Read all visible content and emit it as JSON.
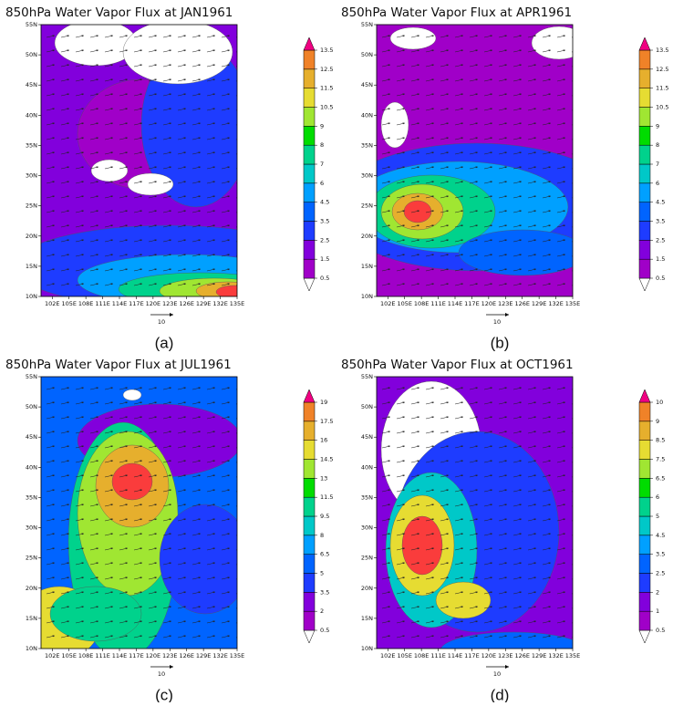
{
  "panels": [
    {
      "title": "850hPa Water Vapor Flux at JAN1961",
      "label": "(a)",
      "levels": [
        0.5,
        1.5,
        2.5,
        3.5,
        4.5,
        6,
        7,
        8,
        9,
        10.5,
        11.5,
        12.5,
        13.5
      ]
    },
    {
      "title": "850hPa Water Vapor Flux at APR1961",
      "label": "(b)",
      "levels": [
        0.5,
        1.5,
        2.5,
        3.5,
        4.5,
        6,
        7,
        8,
        9,
        10.5,
        11.5,
        12.5,
        13.5
      ]
    },
    {
      "title": "850hPa Water Vapor Flux at JUL1961",
      "label": "(c)",
      "levels": [
        0.5,
        2,
        3.5,
        5,
        6.5,
        8,
        9.5,
        11.5,
        13,
        14.5,
        16,
        17.5,
        19
      ]
    },
    {
      "title": "850hPa Water Vapor Flux at OCT1961",
      "label": "(d)",
      "levels": [
        0.5,
        1,
        2,
        2.5,
        3.5,
        4.5,
        5,
        6,
        6.5,
        7.5,
        8.5,
        9,
        10
      ]
    }
  ],
  "colorbar_colors": [
    "#a000c8",
    "#8200dc",
    "#1e3cff",
    "#0064ff",
    "#00a0ff",
    "#00c8c8",
    "#00d28c",
    "#00dc00",
    "#a0e632",
    "#e6dc32",
    "#e6af2d",
    "#f08228",
    "#fa3c3c",
    "#f00082"
  ],
  "xlim": [
    100,
    135
  ],
  "ylim": [
    10,
    55
  ],
  "lon_ticks": [
    {
      "value": 102,
      "label": "102E"
    },
    {
      "value": 105,
      "label": "105E"
    },
    {
      "value": 108,
      "label": "108E"
    },
    {
      "value": 111,
      "label": "111E"
    },
    {
      "value": 114,
      "label": "114E"
    },
    {
      "value": 117,
      "label": "117E"
    },
    {
      "value": 120,
      "label": "120E"
    },
    {
      "value": 123,
      "label": "123E"
    },
    {
      "value": 126,
      "label": "126E"
    },
    {
      "value": 129,
      "label": "129E"
    },
    {
      "value": 132,
      "label": "132E"
    },
    {
      "value": 135,
      "label": "135E"
    }
  ],
  "lat_ticks": [
    {
      "value": 10,
      "label": "10N"
    },
    {
      "value": 15,
      "label": "15N"
    },
    {
      "value": 20,
      "label": "20N"
    },
    {
      "value": 25,
      "label": "25N"
    },
    {
      "value": 30,
      "label": "30N"
    },
    {
      "value": 35,
      "label": "35N"
    },
    {
      "value": 40,
      "label": "40N"
    },
    {
      "value": 45,
      "label": "45N"
    },
    {
      "value": 50,
      "label": "50N"
    },
    {
      "value": 55,
      "label": "55N"
    }
  ],
  "vector_ref": 10
}
